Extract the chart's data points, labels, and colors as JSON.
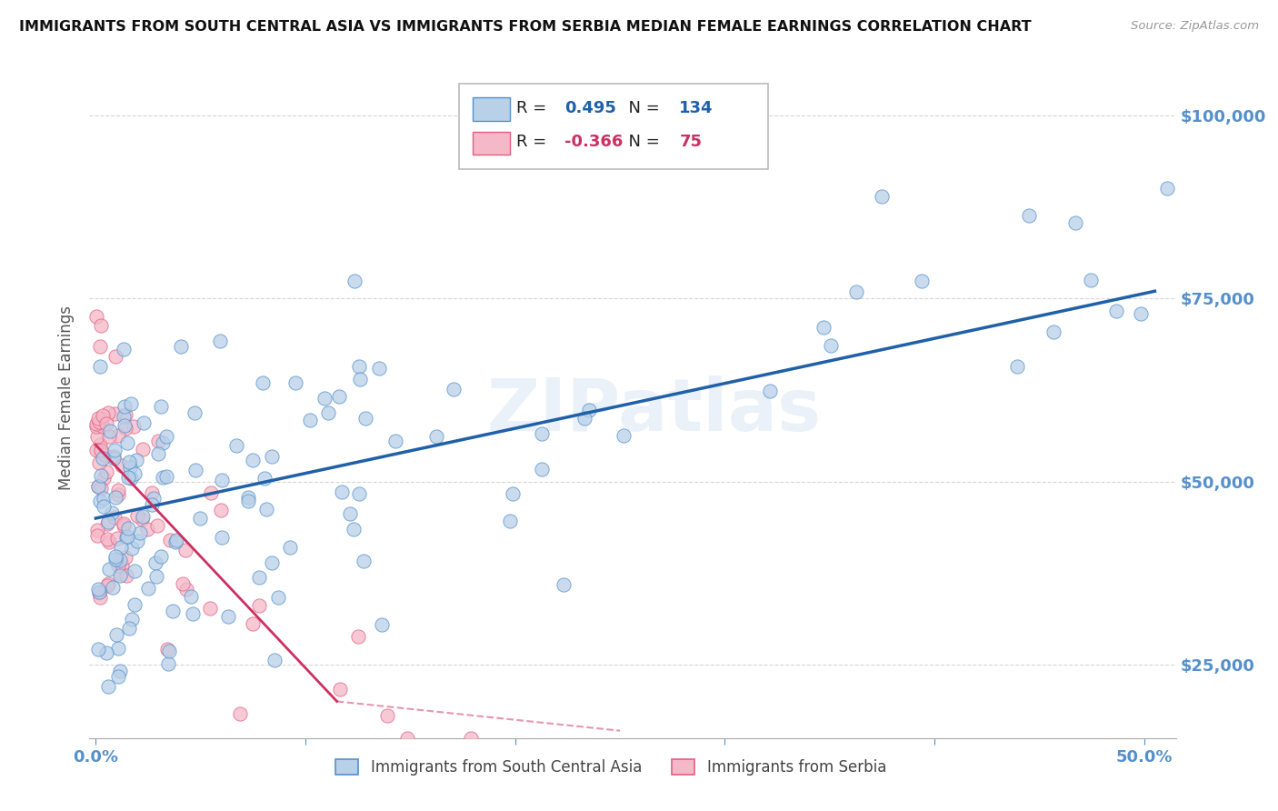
{
  "title": "IMMIGRANTS FROM SOUTH CENTRAL ASIA VS IMMIGRANTS FROM SERBIA MEDIAN FEMALE EARNINGS CORRELATION CHART",
  "source": "Source: ZipAtlas.com",
  "ylabel": "Median Female Earnings",
  "ytick_labels": [
    "$25,000",
    "$50,000",
    "$75,000",
    "$100,000"
  ],
  "ytick_values": [
    25000,
    50000,
    75000,
    100000
  ],
  "ylim": [
    15000,
    108000
  ],
  "xlim": [
    -0.003,
    0.515
  ],
  "r1": 0.495,
  "n1": 134,
  "r2": -0.366,
  "n2": 75,
  "legend_label1": "Immigrants from South Central Asia",
  "legend_label2": "Immigrants from Serbia",
  "color1": "#b8d0e8",
  "color2": "#f5b8c8",
  "edge_color1": "#5590cc",
  "edge_color2": "#e06080",
  "line_color1": "#2060a8",
  "line_color2": "#cc3060",
  "watermark": "ZIPatlas",
  "title_color": "#111111",
  "axis_color": "#5590cc",
  "background_color": "#ffffff",
  "trend1_x0": 0.0,
  "trend1_x1": 0.505,
  "trend1_y0": 45000,
  "trend1_y1": 76000,
  "trend2_x0": 0.0,
  "trend2_x1": 0.115,
  "trend2_y0": 55000,
  "trend2_y1": 20000,
  "trend2_dash_x0": 0.115,
  "trend2_dash_x1": 0.25,
  "trend2_dash_y0": 20000,
  "trend2_dash_y1": 16000
}
